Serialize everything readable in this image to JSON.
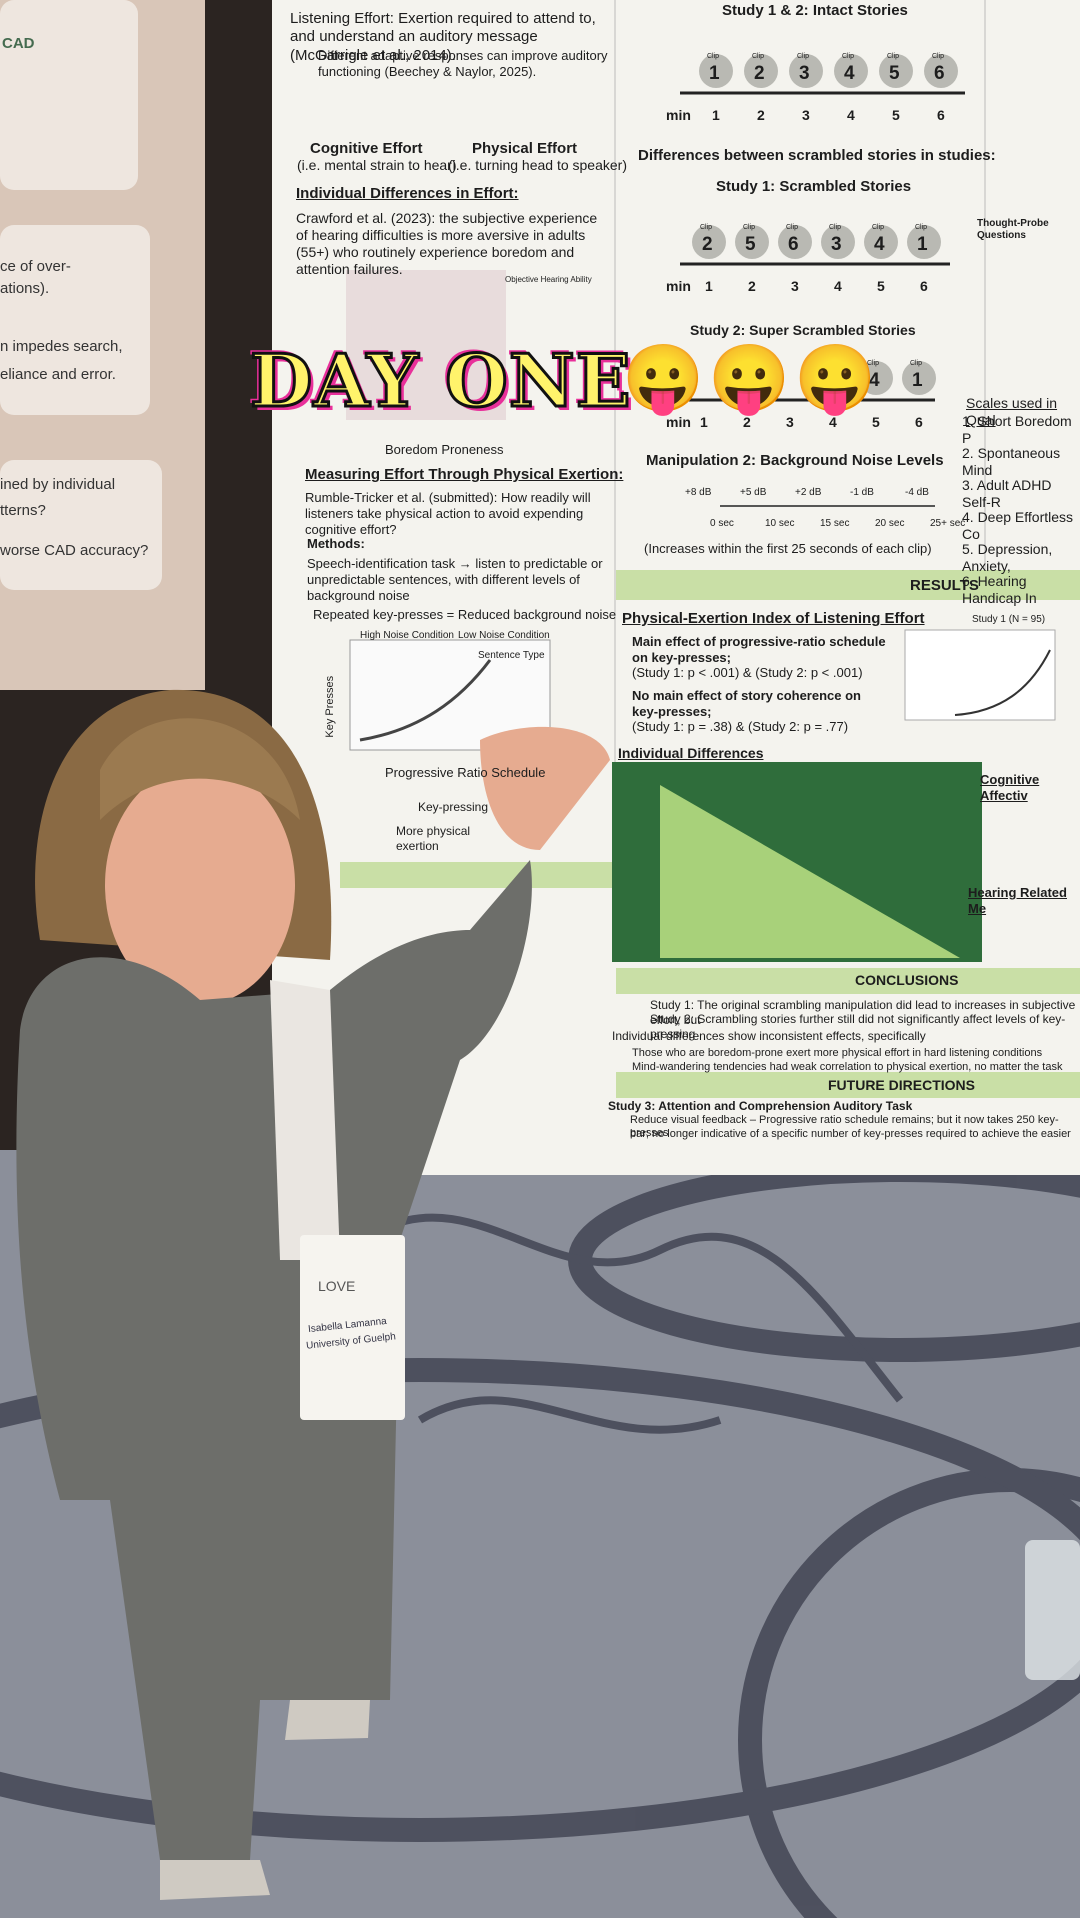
{
  "overlay": {
    "caption": "DAY ONE",
    "emoji": "😛😛😛"
  },
  "left_panel": {
    "lines": [
      "CAD",
      "ce of over-",
      "ations).",
      "n impedes search,",
      "eliance and error.",
      "ined by individual",
      "tterns?",
      "worse CAD accuracy?"
    ]
  },
  "poster": {
    "left_column": {
      "listening_effort": "Listening Effort: Exertion required to attend to, and understand an auditory message (McGarrigle et al., 2014).",
      "adaptive": "Different adaptive responses can improve auditory functioning (Beechey & Naylor, 2025).",
      "cognitive_title": "Cognitive Effort",
      "cognitive_note": "(i.e. mental strain to hear)",
      "physical_title": "Physical Effort",
      "physical_note": "(i.e. turning head to speaker)",
      "individual_heading": "Individual Differences in Effort:",
      "crawford": "Crawford et al. (2023): the subjective experience of hearing difficulties is more aversive in adults (55+) who routinely experience boredom and attention failures.",
      "legend_title": "Objective Hearing Ability",
      "boredom_axis": "Boredom Proneness",
      "measuring_heading": "Measuring Effort Through Physical Exertion:",
      "rumble": "Rumble-Tricker et al. (submitted): How readily will listeners take physical action to avoid expending cognitive effort?",
      "methods": "Methods:",
      "task": "Speech-identification task → listen to predictable or unpredictable sentences, with different levels of background noise",
      "repeated": "Repeated key-presses = Reduced background noise",
      "high_noise": "High Noise Condition",
      "low_noise": "Low Noise Condition",
      "key_presses_axis": "Key Presses",
      "sentence_type": "Sentence Type",
      "pr_axis": "Progressive Ratio Schedule",
      "key_pressing": "Key-pressing",
      "more_physical": "More physical exertion"
    },
    "right_column": {
      "intact_heading": "Study 1 & 2: Intact Stories",
      "min": "min",
      "minutes": [
        "1",
        "2",
        "3",
        "4",
        "5",
        "6"
      ],
      "clip": "Clip",
      "intact_clips": [
        "1",
        "2",
        "3",
        "4",
        "5",
        "6"
      ],
      "differences": "Differences between scrambled stories in studies:",
      "scrambled_heading": "Study 1: Scrambled Stories",
      "scrambled_clips": [
        "2",
        "5",
        "6",
        "3",
        "4",
        "1"
      ],
      "super_heading": "Study 2: Super Scrambled Stories",
      "super_clips": [
        "4",
        "1"
      ],
      "manipulation_heading": "Manipulation 2: Background Noise Levels",
      "noise_levels": [
        "+8 dB",
        "+5 dB",
        "+2 dB",
        "-1 dB",
        "-4 dB"
      ],
      "clip_starts": [
        "0 sec",
        "10 sec",
        "15 sec",
        "20 sec",
        "25+ sec"
      ],
      "increases": "(Increases within the first 25 seconds of each clip)",
      "results": "RESULTS",
      "pei_heading": "Physical-Exertion Index of Listening Effort",
      "main_effect": "Main effect of progressive-ratio schedule on key-presses;",
      "main_p": "(Study 1: p < .001) & (Study 2: p < .001)",
      "no_effect": "No main effect of story coherence on key-presses;",
      "no_p": "(Study 1: p = .38) & (Study 2: p = .77)",
      "study1_n": "Study 1 (N = 95)",
      "individual_heading": "Individual Differences",
      "conclusions": "CONCLUSIONS",
      "c1": "Study 1: The original scrambling manipulation did lead to increases in subjective effort, but",
      "c2": "Study 2: Scrambling stories further still did not significantly affect levels of key-pressing",
      "c3": "Individual differences show inconsistent effects, specifically",
      "c4": "Those who are boredom-prone exert more physical effort in hard listening conditions",
      "c5": "Mind-wandering tendencies had weak correlation to physical exertion, no matter the task",
      "future": "FUTURE DIRECTIONS",
      "f1": "Study 3: Attention and Comprehension Auditory Task",
      "f2": "Reduce visual feedback – Progressive ratio schedule remains; but it now takes 250 key-presses",
      "f3": "bar; no longer indicative of a specific number of key-presses required to achieve the easier"
    },
    "far_right": {
      "scales_heading": "Scales used in Qual",
      "scales": [
        "1. Short Boredom P",
        "2. Spontaneous Mind",
        "3. Adult ADHD Self-R",
        "4. Deep Effortless Co",
        "5. Depression, Anxiety,",
        "6. Hearing Handicap In"
      ],
      "cognitive_affective": "Cognitive Affectiv",
      "hearing_related": "Hearing Related Me",
      "thought_probe": "Thought-Probe Questions"
    }
  },
  "badge": {
    "event": "LOVE",
    "name": "Isabella Lamanna",
    "school": "University of Guelph"
  }
}
